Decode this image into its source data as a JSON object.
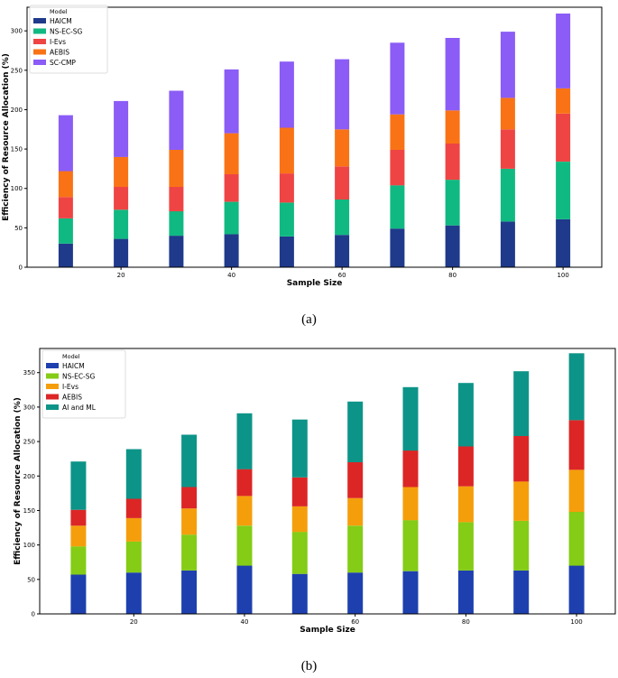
{
  "chart_data": [
    {
      "type": "bar",
      "stacked": true,
      "caption": "(a)",
      "xlabel": "Sample Size",
      "ylabel": "Efficiency of Resource Allocation (%)",
      "x": [
        10,
        20,
        30,
        40,
        50,
        60,
        70,
        80,
        90,
        100
      ],
      "xticks": [
        20,
        40,
        60,
        80,
        100
      ],
      "yticks": [
        0,
        50,
        100,
        150,
        200,
        250,
        300
      ],
      "xlim": [
        3,
        107
      ],
      "ylim": [
        0,
        330
      ],
      "legend_title": "Model",
      "legend_position": "top-left",
      "series": [
        {
          "name": "HAICM",
          "color": "#1f3a8a",
          "values": [
            30,
            36,
            40,
            42,
            39,
            41,
            49,
            53,
            58,
            61
          ]
        },
        {
          "name": "NS-EC-SG",
          "color": "#10b981",
          "values": [
            32,
            37,
            31,
            41,
            43,
            45,
            55,
            58,
            67,
            73
          ]
        },
        {
          "name": "I-Evs",
          "color": "#ef4444",
          "values": [
            27,
            29,
            31,
            35,
            37,
            42,
            45,
            46,
            50,
            61
          ]
        },
        {
          "name": "AEBIS",
          "color": "#f97316",
          "values": [
            33,
            38,
            47,
            52,
            58,
            47,
            45,
            42,
            40,
            32
          ]
        },
        {
          "name": "SC-CMP",
          "color": "#8b5cf6",
          "values": [
            71,
            71,
            75,
            81,
            84,
            89,
            91,
            92,
            84,
            95
          ]
        }
      ]
    },
    {
      "type": "bar",
      "stacked": true,
      "caption": "(b)",
      "xlabel": "Sample Size",
      "ylabel": "Efficiency of Resource Allocation (%)",
      "x": [
        10,
        20,
        30,
        40,
        50,
        60,
        70,
        80,
        90,
        100
      ],
      "xticks": [
        20,
        40,
        60,
        80,
        100
      ],
      "yticks": [
        0,
        50,
        100,
        150,
        200,
        250,
        300,
        350
      ],
      "xlim": [
        3,
        107
      ],
      "ylim": [
        0,
        385
      ],
      "legend_title": "Model",
      "legend_position": "top-left",
      "series": [
        {
          "name": "HAICM",
          "color": "#1e40af",
          "values": [
            57,
            60,
            63,
            70,
            58,
            60,
            62,
            63,
            63,
            70
          ]
        },
        {
          "name": "NS-EC-SG",
          "color": "#84cc16",
          "values": [
            41,
            45,
            52,
            58,
            61,
            68,
            74,
            70,
            72,
            78
          ]
        },
        {
          "name": "I-Evs",
          "color": "#f59e0b",
          "values": [
            30,
            34,
            38,
            43,
            37,
            40,
            48,
            52,
            57,
            61
          ]
        },
        {
          "name": "AEBIS",
          "color": "#dc2626",
          "values": [
            23,
            28,
            31,
            39,
            42,
            52,
            53,
            58,
            66,
            72
          ]
        },
        {
          "name": "AI and ML",
          "color": "#0d9488",
          "values": [
            70,
            72,
            76,
            81,
            84,
            88,
            92,
            92,
            94,
            97
          ]
        }
      ]
    }
  ]
}
